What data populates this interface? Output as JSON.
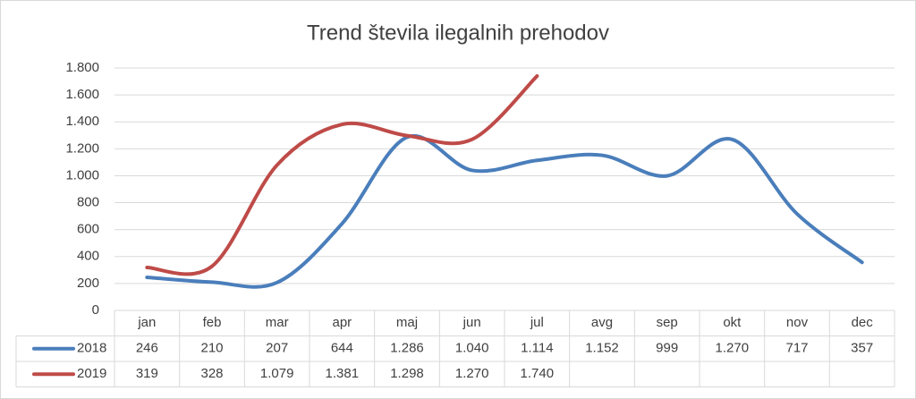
{
  "chart_data": {
    "type": "line",
    "title": "Trend števila ilegalnih prehodov",
    "categories": [
      "jan",
      "feb",
      "mar",
      "apr",
      "maj",
      "jun",
      "jul",
      "avg",
      "sep",
      "okt",
      "nov",
      "dec"
    ],
    "series": [
      {
        "name": "2018",
        "color": "#4a7ebb",
        "values": [
          246,
          210,
          207,
          644,
          1286,
          1040,
          1114,
          1152,
          999,
          1270,
          717,
          357
        ],
        "value_labels": [
          "246",
          "210",
          "207",
          "644",
          "1.286",
          "1.040",
          "1.114",
          "1.152",
          "999",
          "1.270",
          "717",
          "357"
        ]
      },
      {
        "name": "2019",
        "color": "#be4b48",
        "values": [
          319,
          328,
          1079,
          1381,
          1298,
          1270,
          1740,
          null,
          null,
          null,
          null,
          null
        ],
        "value_labels": [
          "319",
          "328",
          "1.079",
          "1.381",
          "1.298",
          "1.270",
          "1.740",
          null,
          null,
          null,
          null,
          null
        ]
      }
    ],
    "ylim": [
      0,
      1800
    ],
    "yticks": [
      0,
      200,
      400,
      600,
      800,
      {
        "value": 1000,
        "label": "1.000"
      },
      {
        "value": 1200,
        "label": "1.200"
      },
      {
        "value": 1400,
        "label": "1.400"
      },
      {
        "value": 1600,
        "label": "1.600"
      },
      {
        "value": 1800,
        "label": "1.800"
      }
    ],
    "grid": true,
    "data_table": true
  }
}
